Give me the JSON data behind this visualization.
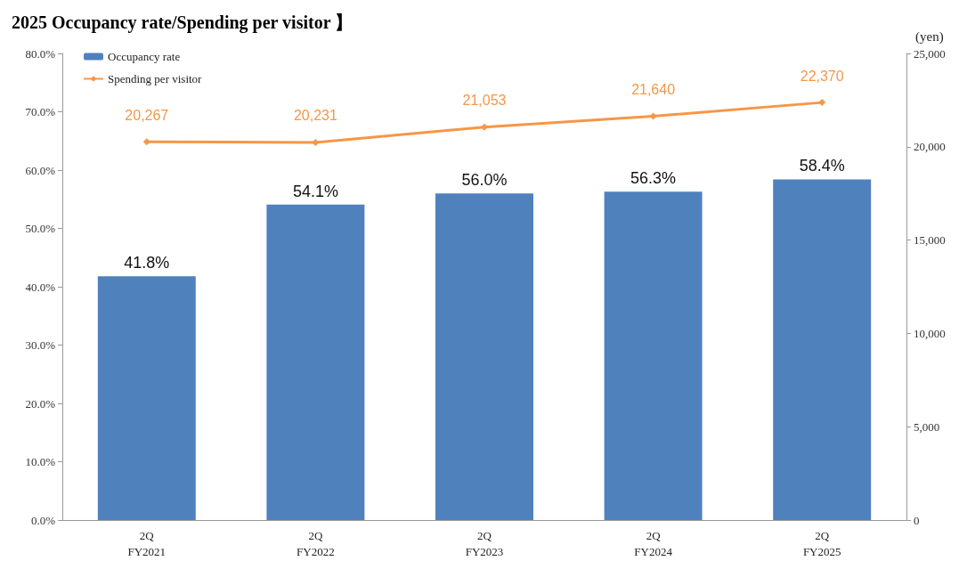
{
  "chart_data": {
    "type": "bar",
    "title": "2025 Occupancy rate/Spending per visitor 】",
    "y2label": "(yen)",
    "categories": [
      "2Q\nFY2021",
      "2Q\nFY2022",
      "2Q\nFY2023",
      "2Q\nFY2024",
      "2Q\nFY2025"
    ],
    "series": [
      {
        "name": "Occupancy rate",
        "color": "#4f81bd",
        "values": [
          41.8,
          54.1,
          56.0,
          56.3,
          58.4
        ],
        "value_labels": [
          "41.8%",
          "54.1%",
          "56.0%",
          "56.3%",
          "58.4%"
        ]
      },
      {
        "name": "Spending per visitor",
        "type": "line",
        "axis": "y2",
        "color": "#f79646",
        "marker": "diamond",
        "values": [
          20267,
          20231,
          21053,
          21640,
          22370
        ],
        "value_labels": [
          "20,267",
          "20,231",
          "21,053",
          "21,640",
          "22,370"
        ]
      }
    ],
    "ylim": [
      0,
      80
    ],
    "yticks": [
      {
        "value": 0,
        "label": "0.0%"
      },
      {
        "value": 10,
        "label": "10.0%"
      },
      {
        "value": 20,
        "label": "20.0%"
      },
      {
        "value": 30,
        "label": "30.0%"
      },
      {
        "value": 40,
        "label": "40.0%"
      },
      {
        "value": 50,
        "label": "50.0%"
      },
      {
        "value": 60,
        "label": "60.0%"
      },
      {
        "value": 70,
        "label": "70.0%"
      },
      {
        "value": 80,
        "label": "80.0%"
      }
    ],
    "y2lim": [
      0,
      25000
    ],
    "y2ticks": [
      0,
      {
        "value": 5000,
        "label": "5,000"
      },
      {
        "value": 10000,
        "label": "10,000"
      },
      {
        "value": 15000,
        "label": "15,000"
      },
      {
        "value": 20000,
        "label": "20,000"
      },
      {
        "value": 25000,
        "label": "25,000"
      }
    ],
    "legend": "top left",
    "grid": false
  }
}
